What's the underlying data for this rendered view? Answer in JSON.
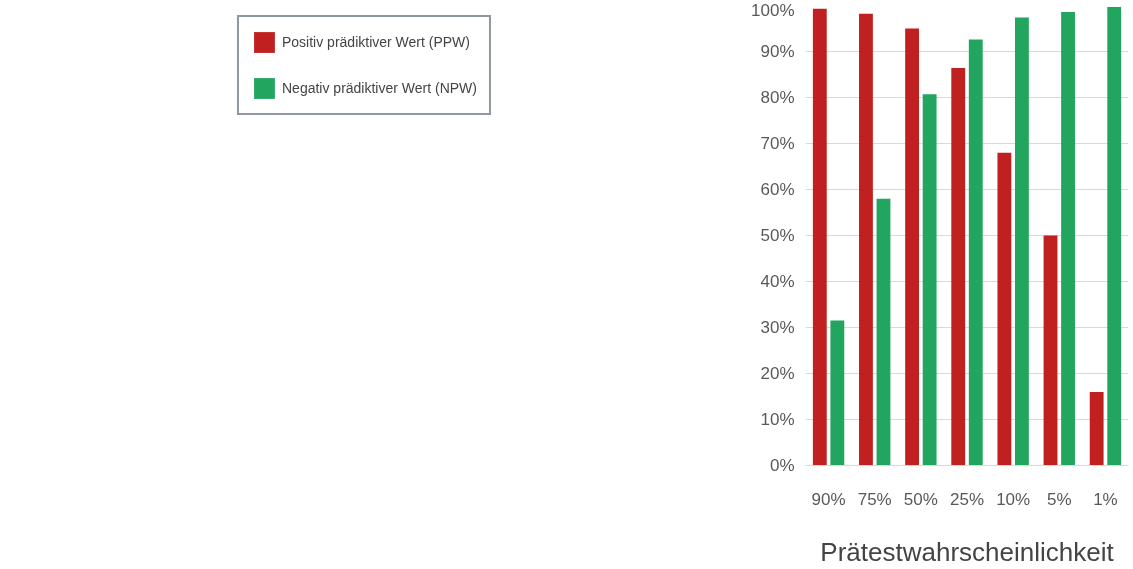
{
  "chart_data": {
    "type": "bar",
    "xlabel": "Prätestwahrscheinlichkeit",
    "categories": [
      "90%",
      "75%",
      "50%",
      "25%",
      "10%",
      "5%",
      "1%"
    ],
    "series": [
      {
        "name": "Positiv prädiktiver Wert (PPW)",
        "color": "#c0201f",
        "values": [
          99.3,
          98.2,
          95,
          86.4,
          68,
          50,
          16
        ]
      },
      {
        "name": "Negativ prädiktiver Wert (NPW)",
        "color": "#21a55f",
        "values": [
          31.5,
          58,
          80.7,
          92.6,
          97.4,
          98.6,
          99.7
        ]
      }
    ],
    "ylim": [
      0,
      100
    ],
    "yticks": [
      {
        "value": 0,
        "label": "0%"
      },
      {
        "value": 10,
        "label": "10%"
      },
      {
        "value": 20,
        "label": "20%"
      },
      {
        "value": 30,
        "label": "30%"
      },
      {
        "value": 40,
        "label": "40%"
      },
      {
        "value": 50,
        "label": "50%"
      },
      {
        "value": 60,
        "label": "60%"
      },
      {
        "value": 70,
        "label": "70%"
      },
      {
        "value": 80,
        "label": "80%"
      },
      {
        "value": 90,
        "label": "90%"
      },
      {
        "value": 100,
        "label": "100%"
      }
    ],
    "grid": "y",
    "legend": "left"
  }
}
